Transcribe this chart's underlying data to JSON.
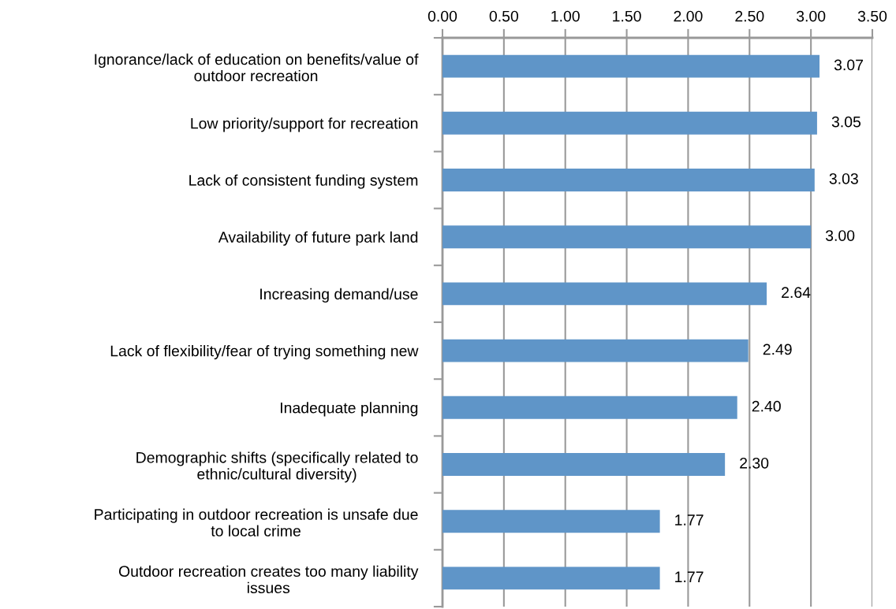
{
  "chart_data": {
    "type": "bar",
    "orientation": "horizontal",
    "categories": [
      "Ignorance/lack of education on benefits/value of\noutdoor recreation",
      "Low priority/support for recreation",
      "Lack of consistent funding system",
      "Availability of future park land",
      "Increasing demand/use",
      "Lack of flexibility/fear of trying something new",
      "Inadequate planning",
      "Demographic shifts (specifically related to\nethnic/cultural diversity)",
      "Participating in outdoor recreation is unsafe due\nto local crime",
      "Outdoor recreation creates too many liability\nissues"
    ],
    "values": [
      3.07,
      3.05,
      3.03,
      3.0,
      2.64,
      2.49,
      2.4,
      2.3,
      1.77,
      1.77
    ],
    "value_labels": [
      "3.07",
      "3.05",
      "3.03",
      "3.00",
      "2.64",
      "2.49",
      "2.40",
      "2.30",
      "1.77",
      "1.77"
    ],
    "color": "#5f95c8",
    "xlim": [
      0,
      3.5
    ],
    "xticks": [
      {
        "value": 0,
        "label": "0.00"
      },
      {
        "value": 0.5,
        "label": "0.50"
      },
      {
        "value": 1,
        "label": "1.00"
      },
      {
        "value": 1.5,
        "label": "1.50"
      },
      {
        "value": 2,
        "label": "2.00"
      },
      {
        "value": 2.5,
        "label": "2.50"
      },
      {
        "value": 3,
        "label": "3.00"
      },
      {
        "value": 3.5,
        "label": "3.50"
      }
    ],
    "grid": "x"
  }
}
